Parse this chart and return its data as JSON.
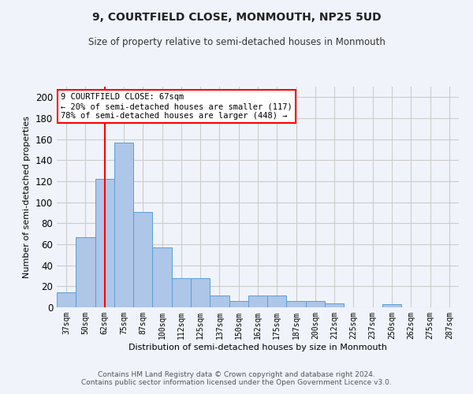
{
  "title": "9, COURTFIELD CLOSE, MONMOUTH, NP25 5UD",
  "subtitle": "Size of property relative to semi-detached houses in Monmouth",
  "xlabel": "Distribution of semi-detached houses by size in Monmouth",
  "ylabel": "Number of semi-detached properties",
  "categories": [
    "37sqm",
    "50sqm",
    "62sqm",
    "75sqm",
    "87sqm",
    "100sqm",
    "112sqm",
    "125sqm",
    "137sqm",
    "150sqm",
    "162sqm",
    "175sqm",
    "187sqm",
    "200sqm",
    "212sqm",
    "225sqm",
    "237sqm",
    "250sqm",
    "262sqm",
    "275sqm",
    "287sqm"
  ],
  "values": [
    14,
    67,
    122,
    157,
    91,
    57,
    28,
    28,
    11,
    6,
    11,
    11,
    6,
    6,
    4,
    0,
    0,
    3,
    0,
    0,
    0
  ],
  "bar_color": "#aec6e8",
  "bar_edge_color": "#5a9fd4",
  "vline_x_index": 2,
  "vline_color": "red",
  "annotation_text": "9 COURTFIELD CLOSE: 67sqm\n← 20% of semi-detached houses are smaller (117)\n78% of semi-detached houses are larger (448) →",
  "annotation_box_color": "white",
  "annotation_box_edge": "red",
  "ylim": [
    0,
    210
  ],
  "yticks": [
    0,
    20,
    40,
    60,
    80,
    100,
    120,
    140,
    160,
    180,
    200
  ],
  "grid_color": "#cccccc",
  "footer_line1": "Contains HM Land Registry data © Crown copyright and database right 2024.",
  "footer_line2": "Contains public sector information licensed under the Open Government Licence v3.0.",
  "bg_color": "#f0f4fa"
}
